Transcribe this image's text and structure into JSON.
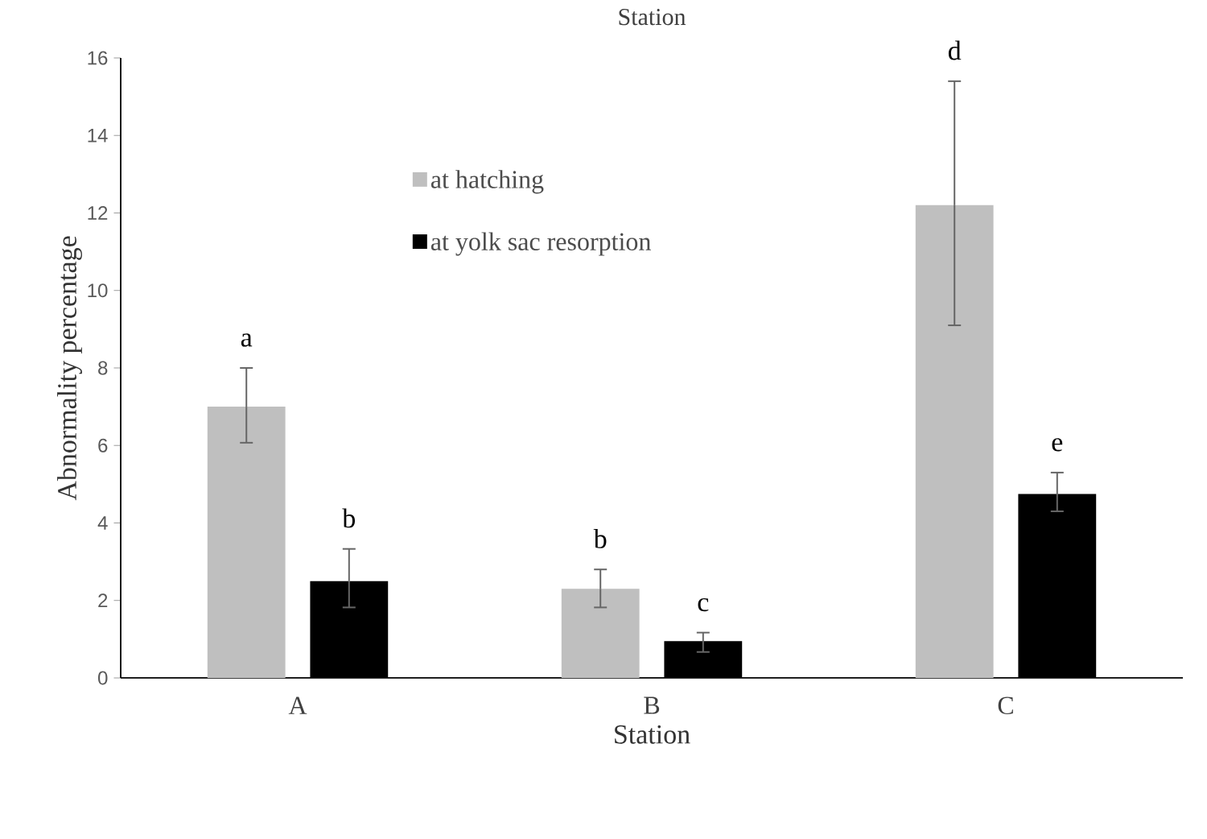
{
  "chart_data": {
    "type": "bar",
    "title": "Station",
    "xlabel": "Station",
    "ylabel": "Abnormality  percentage",
    "categories": [
      "A",
      "B",
      "C"
    ],
    "series": [
      {
        "name": "at hatching",
        "color": "#bfbfbf",
        "values": [
          7.0,
          2.3,
          12.2
        ],
        "errors": [
          [
            6.07,
            8.0
          ],
          [
            1.82,
            2.8
          ],
          [
            9.1,
            15.4
          ]
        ]
      },
      {
        "name": "at yolk sac resorption",
        "color": "#000000",
        "values": [
          2.5,
          0.95,
          4.75
        ],
        "errors": [
          [
            1.82,
            3.33
          ],
          [
            0.67,
            1.17
          ],
          [
            4.3,
            5.3
          ]
        ]
      }
    ],
    "ylim": [
      0,
      16
    ],
    "yticks": [
      0,
      2,
      4,
      6,
      8,
      10,
      12,
      14,
      16
    ],
    "grid": false,
    "legend": "top",
    "annotations": [
      "a",
      "b",
      "b",
      "c",
      "d",
      "e"
    ]
  }
}
